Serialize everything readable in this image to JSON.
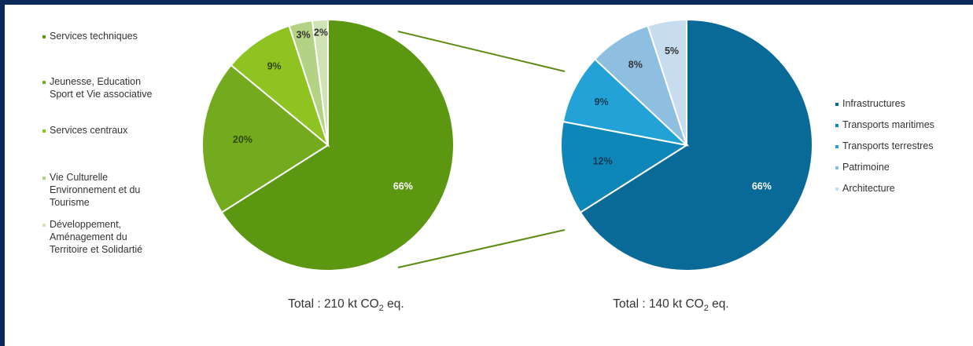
{
  "chart_data": [
    {
      "type": "pie",
      "total_label": "Total : 210 kt CO",
      "total_sub": "2",
      "total_suffix": " eq.",
      "slices": [
        {
          "name": "Services techniques",
          "value": 66,
          "label": "66%",
          "color": "#5c9712",
          "label_color": "#ffffff"
        },
        {
          "name": "Jeunesse, Education Sport et Vie associative",
          "legend_lines": [
            "Jeunesse, Education",
            "Sport et Vie associative"
          ],
          "value": 20,
          "label": "20%",
          "color": "#74ab1e",
          "label_color": "#2f4a0c"
        },
        {
          "name": "Services centraux",
          "value": 9,
          "label": "9%",
          "color": "#8fc321",
          "label_color": "#2f4a0c"
        },
        {
          "name": "Vie Culturelle Environnement et du Tourisme",
          "legend_lines": [
            "Vie Culturelle",
            "Environnement et du",
            "Tourisme"
          ],
          "value": 3,
          "label": "3%",
          "color": "#b3d284",
          "label_color": "#333333"
        },
        {
          "name": "Développement, Aménagement du Territoire et Solidartié",
          "legend_lines": [
            "Développement,",
            "Aménagement du",
            "Territoire et Solidartié"
          ],
          "value": 2,
          "label": "2%",
          "color": "#cfe3b4",
          "label_color": "#333333"
        }
      ]
    },
    {
      "type": "pie",
      "total_label": "Total : 140 kt CO",
      "total_sub": "2",
      "total_suffix": " eq.",
      "slices": [
        {
          "name": "Infrastructures",
          "value": 66,
          "label": "66%",
          "color": "#0a6a97",
          "label_color": "#ffffff"
        },
        {
          "name": "Transports maritimes",
          "value": 12,
          "label": "12%",
          "color": "#0e86b8",
          "label_color": "#123b52"
        },
        {
          "name": "Transports terrestres",
          "value": 9,
          "label": "9%",
          "color": "#22a2d6",
          "label_color": "#123b52"
        },
        {
          "name": "Patrimoine",
          "value": 8,
          "label": "8%",
          "color": "#8fbfe0",
          "label_color": "#333333"
        },
        {
          "name": "Architecture",
          "value": 5,
          "label": "5%",
          "color": "#c8dcef",
          "label_color": "#333333"
        }
      ]
    }
  ],
  "connector_color": "#5c8a12"
}
